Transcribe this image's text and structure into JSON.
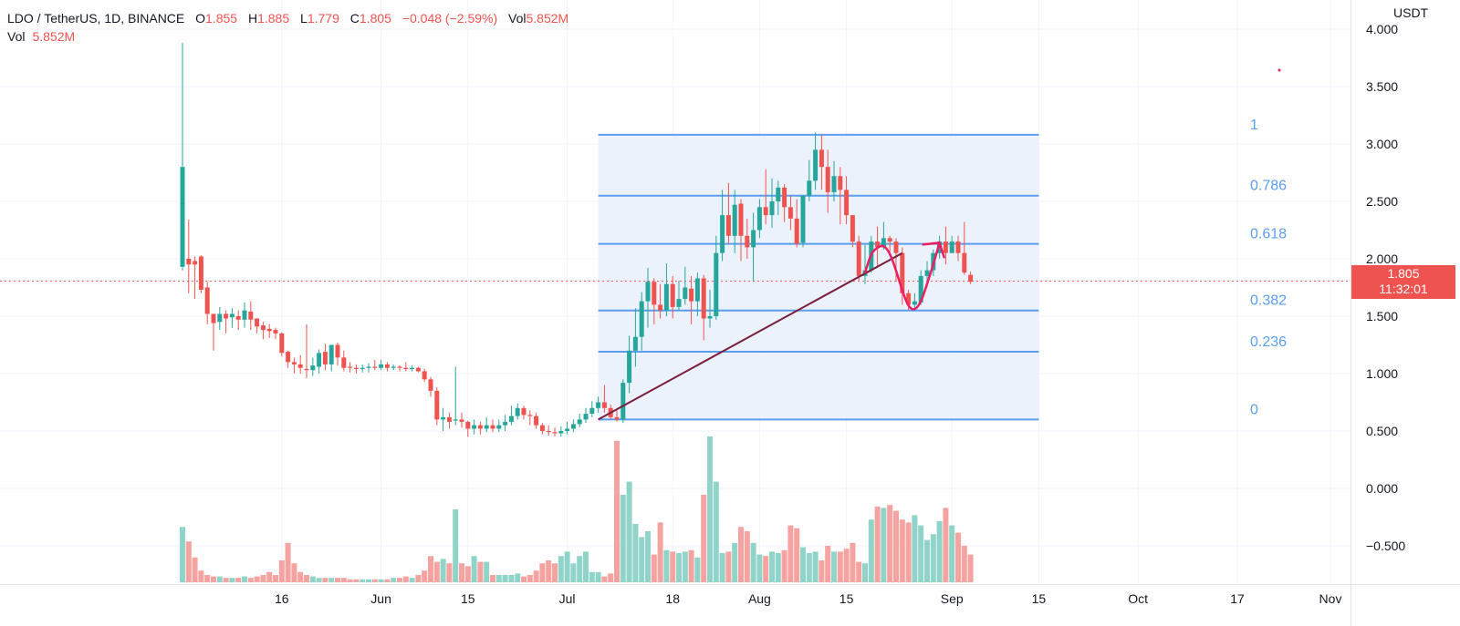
{
  "legend": {
    "symbol": "LDO / TetherUS, 1D, BINANCE",
    "open_label": "O",
    "open": "1.855",
    "high_label": "H",
    "high": "1.885",
    "low_label": "L",
    "low": "1.779",
    "close_label": "C",
    "close": "1.805",
    "change": "−0.048 (−2.59%)",
    "vol_label": "Vol",
    "vol": "5.852M",
    "vol2_label": "Vol",
    "vol2": "5.852M"
  },
  "price_axis": {
    "unit": "USDT",
    "ticks": [
      "4.000",
      "3.500",
      "3.000",
      "2.500",
      "2.000",
      "1.500",
      "1.000",
      "0.500",
      "0.000",
      "−0.500"
    ]
  },
  "current_price": {
    "value": "1.805",
    "countdown": "11:32:01"
  },
  "time_axis": {
    "ticks": [
      "16",
      "Jun",
      "15",
      "Jul",
      "18",
      "Aug",
      "15",
      "Sep",
      "15",
      "Oct",
      "17",
      "Nov"
    ]
  },
  "colors": {
    "up": "#26a69a",
    "down": "#ef5350",
    "up_volume": "#8fd3c9",
    "down_volume": "#f5a3a0",
    "fib_line": "#5b9ef0",
    "fib_fill": "#e7f0fc",
    "fib_label": "#5b9ef0",
    "trendline": "#7b1e3b",
    "drawing": "#e91e63"
  },
  "chart_data": {
    "type": "candlestick",
    "symbol": "LDO / TetherUS",
    "interval": "1D",
    "exchange": "BINANCE",
    "ylim": [
      -0.8,
      4.0
    ],
    "x_ticks": [
      {
        "day": 16,
        "label": "16"
      },
      {
        "day": 32,
        "label": "Jun"
      },
      {
        "day": 46,
        "label": "15"
      },
      {
        "day": 62,
        "label": "Jul"
      },
      {
        "day": 79,
        "label": "18"
      },
      {
        "day": 93,
        "label": "Aug"
      },
      {
        "day": 107,
        "label": "15"
      },
      {
        "day": 124,
        "label": "Sep"
      },
      {
        "day": 138,
        "label": "15"
      },
      {
        "day": 154,
        "label": "Oct"
      },
      {
        "day": 170,
        "label": "17"
      },
      {
        "day": 185,
        "label": "Nov"
      }
    ],
    "candles": [
      [
        1.93,
        2.8,
        3.88,
        1.9
      ],
      [
        2.0,
        1.95,
        2.34,
        1.7
      ],
      [
        1.98,
        1.95,
        2.02,
        1.65
      ],
      [
        2.02,
        1.73,
        2.03,
        1.7
      ],
      [
        1.75,
        1.52,
        1.8,
        1.43
      ],
      [
        1.52,
        1.44,
        1.52,
        1.2
      ],
      [
        1.45,
        1.52,
        1.58,
        1.38
      ],
      [
        1.52,
        1.48,
        1.55,
        1.35
      ],
      [
        1.49,
        1.52,
        1.57,
        1.4
      ],
      [
        1.5,
        1.47,
        1.55,
        1.38
      ],
      [
        1.47,
        1.55,
        1.62,
        1.4
      ],
      [
        1.54,
        1.47,
        1.63,
        1.38
      ],
      [
        1.48,
        1.41,
        1.48,
        1.35
      ],
      [
        1.42,
        1.38,
        1.45,
        1.3
      ],
      [
        1.39,
        1.37,
        1.43,
        1.31
      ],
      [
        1.38,
        1.35,
        1.4,
        1.3
      ],
      [
        1.35,
        1.18,
        1.36,
        1.15
      ],
      [
        1.19,
        1.1,
        1.2,
        1.05
      ],
      [
        1.1,
        1.08,
        1.14,
        1.0
      ],
      [
        1.08,
        1.05,
        1.16,
        1.0
      ],
      [
        1.04,
        1.03,
        1.43,
        0.96
      ],
      [
        1.03,
        1.07,
        1.14,
        0.98
      ],
      [
        1.06,
        1.18,
        1.21,
        1.0
      ],
      [
        1.19,
        1.08,
        1.26,
        1.03
      ],
      [
        1.08,
        1.25,
        1.25,
        1.02
      ],
      [
        1.25,
        1.14,
        1.27,
        1.07
      ],
      [
        1.14,
        1.05,
        1.2,
        1.02
      ],
      [
        1.06,
        1.05,
        1.1,
        1.01
      ],
      [
        1.05,
        1.04,
        1.08,
        1.0
      ],
      [
        1.04,
        1.05,
        1.08,
        1.01
      ],
      [
        1.05,
        1.06,
        1.09,
        1.01
      ],
      [
        1.06,
        1.05,
        1.12,
        1.03
      ],
      [
        1.05,
        1.08,
        1.12,
        1.03
      ],
      [
        1.08,
        1.05,
        1.1,
        1.02
      ],
      [
        1.05,
        1.06,
        1.08,
        1.03
      ],
      [
        1.06,
        1.05,
        1.07,
        1.02
      ],
      [
        1.05,
        1.04,
        1.1,
        1.02
      ],
      [
        1.04,
        1.05,
        1.07,
        1.02
      ],
      [
        1.05,
        1.02,
        1.06,
        1.01
      ],
      [
        1.02,
        0.95,
        1.04,
        0.93
      ],
      [
        0.95,
        0.85,
        0.97,
        0.8
      ],
      [
        0.85,
        0.6,
        0.88,
        0.55
      ],
      [
        0.6,
        0.62,
        0.7,
        0.5
      ],
      [
        0.62,
        0.58,
        0.66,
        0.52
      ],
      [
        0.59,
        0.6,
        1.06,
        0.55
      ],
      [
        0.6,
        0.58,
        0.66,
        0.53
      ],
      [
        0.58,
        0.52,
        0.59,
        0.45
      ],
      [
        0.52,
        0.55,
        0.6,
        0.47
      ],
      [
        0.55,
        0.52,
        0.58,
        0.47
      ],
      [
        0.52,
        0.55,
        0.62,
        0.49
      ],
      [
        0.55,
        0.52,
        0.6,
        0.49
      ],
      [
        0.52,
        0.55,
        0.6,
        0.49
      ],
      [
        0.55,
        0.58,
        0.64,
        0.5
      ],
      [
        0.58,
        0.63,
        0.72,
        0.55
      ],
      [
        0.63,
        0.7,
        0.74,
        0.6
      ],
      [
        0.7,
        0.64,
        0.72,
        0.6
      ],
      [
        0.64,
        0.63,
        0.68,
        0.55
      ],
      [
        0.63,
        0.55,
        0.66,
        0.52
      ],
      [
        0.55,
        0.5,
        0.57,
        0.47
      ],
      [
        0.5,
        0.49,
        0.55,
        0.46
      ],
      [
        0.49,
        0.48,
        0.53,
        0.45
      ],
      [
        0.48,
        0.5,
        0.54,
        0.45
      ],
      [
        0.5,
        0.52,
        0.58,
        0.47
      ],
      [
        0.52,
        0.56,
        0.6,
        0.49
      ],
      [
        0.56,
        0.6,
        0.65,
        0.53
      ],
      [
        0.6,
        0.65,
        0.7,
        0.57
      ],
      [
        0.65,
        0.7,
        0.76,
        0.62
      ],
      [
        0.7,
        0.75,
        0.8,
        0.66
      ],
      [
        0.75,
        0.7,
        0.9,
        0.66
      ],
      [
        0.7,
        0.62,
        0.73,
        0.6
      ],
      [
        0.62,
        0.6,
        0.68,
        0.58
      ],
      [
        0.6,
        0.92,
        0.95,
        0.57
      ],
      [
        0.92,
        1.2,
        1.33,
        0.83
      ],
      [
        1.2,
        1.32,
        1.57,
        1.06
      ],
      [
        1.32,
        1.63,
        1.71,
        1.2
      ],
      [
        1.63,
        1.8,
        1.92,
        1.4
      ],
      [
        1.8,
        1.6,
        1.83,
        1.43
      ],
      [
        1.6,
        1.55,
        1.78,
        1.48
      ],
      [
        1.55,
        1.78,
        1.96,
        1.5
      ],
      [
        1.78,
        1.58,
        1.85,
        1.48
      ],
      [
        1.58,
        1.65,
        1.81,
        1.55
      ],
      [
        1.65,
        1.75,
        1.93,
        1.6
      ],
      [
        1.74,
        1.63,
        1.85,
        1.43
      ],
      [
        1.63,
        1.83,
        1.88,
        1.5
      ],
      [
        1.83,
        1.48,
        1.86,
        1.29
      ],
      [
        1.48,
        1.5,
        1.73,
        1.4
      ],
      [
        1.5,
        2.05,
        2.2,
        1.47
      ],
      [
        2.05,
        2.38,
        2.6,
        1.98
      ],
      [
        2.38,
        2.2,
        2.66,
        2.13
      ],
      [
        2.2,
        2.47,
        2.6,
        2.05
      ],
      [
        2.48,
        2.2,
        2.52,
        1.98
      ],
      [
        2.2,
        2.1,
        2.35,
        2.0
      ],
      [
        2.1,
        2.25,
        2.4,
        1.8
      ],
      [
        2.25,
        2.45,
        2.52,
        2.18
      ],
      [
        2.45,
        2.38,
        2.78,
        2.3
      ],
      [
        2.38,
        2.5,
        2.7,
        2.27
      ],
      [
        2.5,
        2.62,
        2.68,
        2.38
      ],
      [
        2.62,
        2.45,
        2.65,
        2.32
      ],
      [
        2.45,
        2.35,
        2.55,
        2.25
      ],
      [
        2.35,
        2.13,
        2.52,
        2.1
      ],
      [
        2.14,
        2.55,
        2.55,
        2.1
      ],
      [
        2.55,
        2.68,
        2.86,
        2.5
      ],
      [
        2.68,
        2.95,
        3.1,
        2.6
      ],
      [
        2.95,
        2.8,
        3.08,
        2.6
      ],
      [
        2.8,
        2.58,
        2.95,
        2.4
      ],
      [
        2.58,
        2.72,
        2.85,
        2.5
      ],
      [
        2.72,
        2.6,
        2.8,
        2.3
      ],
      [
        2.6,
        2.38,
        2.72,
        2.3
      ],
      [
        2.38,
        2.15,
        2.38,
        2.1
      ],
      [
        2.15,
        1.85,
        2.2,
        1.81
      ],
      [
        1.85,
        1.9,
        2.12,
        1.78
      ],
      [
        1.9,
        2.15,
        2.2,
        1.88
      ],
      [
        2.15,
        2.1,
        2.28,
        1.92
      ],
      [
        2.1,
        2.18,
        2.32,
        2.08
      ],
      [
        2.18,
        2.15,
        2.2,
        2.02
      ],
      [
        2.15,
        2.05,
        2.18,
        1.8
      ],
      [
        2.05,
        1.7,
        2.1,
        1.6
      ],
      [
        1.7,
        1.6,
        1.73,
        1.55
      ],
      [
        1.6,
        1.63,
        1.7,
        1.55
      ],
      [
        1.62,
        1.85,
        1.9,
        1.6
      ],
      [
        1.85,
        1.9,
        1.98,
        1.75
      ],
      [
        1.9,
        2.05,
        2.08,
        1.85
      ],
      [
        2.05,
        2.15,
        2.2,
        2.0
      ],
      [
        2.15,
        2.05,
        2.28,
        1.95
      ],
      [
        2.05,
        2.15,
        2.2,
        2.05
      ],
      [
        2.15,
        2.05,
        2.2,
        1.98
      ],
      [
        2.05,
        1.88,
        2.32,
        1.86
      ],
      [
        1.86,
        1.8,
        1.89,
        1.78
      ]
    ],
    "volume_max": 1.0,
    "volume": [
      0.38,
      0.28,
      0.17,
      0.08,
      0.05,
      0.04,
      0.04,
      0.03,
      0.03,
      0.03,
      0.04,
      0.03,
      0.04,
      0.05,
      0.07,
      0.05,
      0.15,
      0.27,
      0.13,
      0.07,
      0.05,
      0.04,
      0.03,
      0.03,
      0.03,
      0.03,
      0.03,
      0.02,
      0.02,
      0.02,
      0.02,
      0.02,
      0.02,
      0.02,
      0.03,
      0.03,
      0.04,
      0.03,
      0.05,
      0.08,
      0.18,
      0.14,
      0.16,
      0.13,
      0.5,
      0.13,
      0.11,
      0.18,
      0.14,
      0.14,
      0.05,
      0.05,
      0.05,
      0.05,
      0.06,
      0.04,
      0.05,
      0.08,
      0.13,
      0.15,
      0.13,
      0.18,
      0.21,
      0.13,
      0.18,
      0.21,
      0.07,
      0.07,
      0.04,
      0.06,
      0.97,
      0.6,
      0.69,
      0.4,
      0.31,
      0.35,
      0.19,
      0.41,
      0.22,
      0.21,
      0.2,
      0.21,
      0.22,
      0.17,
      0.6,
      1.0,
      0.69,
      0.2,
      0.21,
      0.27,
      0.38,
      0.35,
      0.27,
      0.19,
      0.18,
      0.21,
      0.2,
      0.22,
      0.39,
      0.37,
      0.24,
      0.2,
      0.21,
      0.15,
      0.25,
      0.21,
      0.21,
      0.23,
      0.27,
      0.14,
      0.13,
      0.43,
      0.52,
      0.51,
      0.53,
      0.49,
      0.43,
      0.41,
      0.46,
      0.39,
      0.29,
      0.33,
      0.42,
      0.51,
      0.39,
      0.34,
      0.25,
      0.19,
      0.23,
      0.27,
      0.17,
      0.14,
      0.21,
      0.55,
      0.15
    ],
    "fibonacci": {
      "low": 0.6,
      "high": 3.08,
      "start_day": 67,
      "end_day": 138,
      "levels": [
        {
          "ratio": 1,
          "label": "1",
          "price": 3.08
        },
        {
          "ratio": 0.786,
          "label": "0.786",
          "price": 2.55
        },
        {
          "ratio": 0.618,
          "label": "0.618",
          "price": 2.13
        },
        {
          "ratio": 0.382,
          "label": "0.382",
          "price": 1.55
        },
        {
          "ratio": 0.236,
          "label": "0.236",
          "price": 1.19
        },
        {
          "ratio": 0,
          "label": "0",
          "price": 0.6
        }
      ]
    },
    "trendline": {
      "from": {
        "day": 67,
        "price": 0.6
      },
      "to": {
        "day": 116,
        "price": 2.05
      }
    },
    "projection_path": [
      {
        "day": 110,
        "price": 1.88
      },
      {
        "day": 111,
        "price": 2.05
      },
      {
        "day": 112,
        "price": 2.1
      },
      {
        "day": 113,
        "price": 2.12
      },
      {
        "day": 114,
        "price": 2.05
      },
      {
        "day": 115,
        "price": 1.9
      },
      {
        "day": 116,
        "price": 1.72
      },
      {
        "day": 117,
        "price": 1.58
      },
      {
        "day": 118,
        "price": 1.55
      },
      {
        "day": 119,
        "price": 1.62
      },
      {
        "day": 120,
        "price": 1.78
      },
      {
        "day": 121,
        "price": 1.95
      },
      {
        "day": 122,
        "price": 2.14
      }
    ],
    "current_price": 1.805,
    "grid": true
  }
}
